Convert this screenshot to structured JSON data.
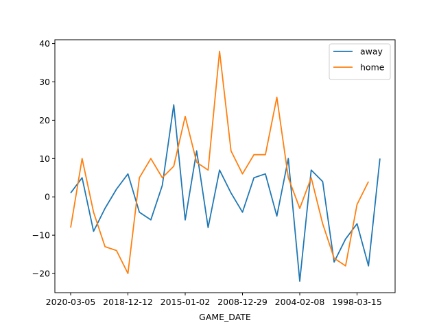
{
  "chart_data": {
    "type": "line",
    "title": "",
    "xlabel": "GAME_DATE",
    "ylabel": "",
    "x_ticks": [
      "2020-03-05",
      "2018-12-12",
      "2015-01-02",
      "2008-12-29",
      "2004-02-08",
      "1998-03-15"
    ],
    "x_tick_index": [
      0,
      5,
      10,
      15,
      20,
      25
    ],
    "ylim": [
      -25,
      41
    ],
    "yticks": [
      -20,
      -10,
      0,
      10,
      20,
      30,
      40
    ],
    "grid": false,
    "legend_position": "top-right",
    "series": [
      {
        "name": "away",
        "color": "#1f77b4",
        "values": [
          1,
          5,
          -9,
          -3,
          2,
          6,
          -4,
          -6,
          3,
          24,
          -6,
          12,
          -8,
          7,
          1,
          -4,
          5,
          6,
          -5,
          10,
          -22,
          7,
          4,
          -17,
          -11,
          -7,
          -18,
          10
        ]
      },
      {
        "name": "home",
        "color": "#ff7f0e",
        "values": [
          -8,
          10,
          -4,
          -13,
          -14,
          -20,
          5,
          10,
          5,
          8,
          21,
          9,
          7,
          38,
          12,
          6,
          11,
          11,
          26,
          5,
          -3,
          5,
          -7,
          -16,
          -18,
          -2,
          4
        ]
      }
    ]
  }
}
